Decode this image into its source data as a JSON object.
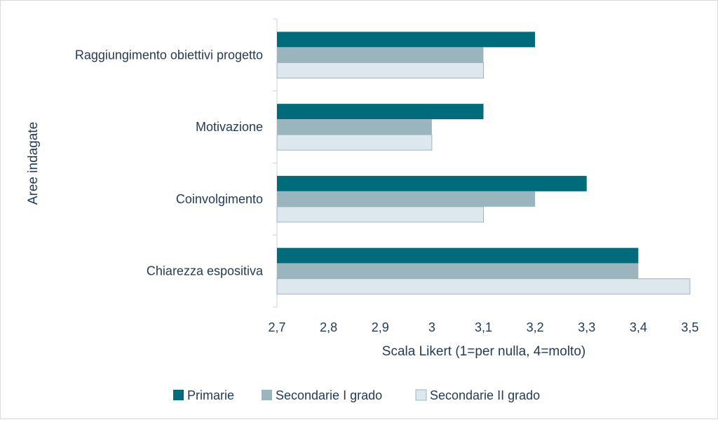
{
  "chart_data": {
    "type": "bar",
    "orientation": "horizontal",
    "title": "",
    "xlabel": "Scala Likert (1=per nulla, 4=molto)",
    "ylabel": "Aree indagate",
    "xlim": [
      2.7,
      3.5
    ],
    "x_ticks": [
      "2,7",
      "2,8",
      "2,9",
      "3",
      "3,1",
      "3,2",
      "3,3",
      "3,4",
      "3,5"
    ],
    "categories": [
      "Raggiungimento obiettivi progetto",
      "Motivazione",
      "Coinvolgimento",
      "Chiarezza espositiva"
    ],
    "series": [
      {
        "name": "Primarie",
        "color": "#006b7a",
        "values": [
          3.2,
          3.1,
          3.3,
          3.4
        ]
      },
      {
        "name": "Secondarie I grado",
        "color": "#9bb5be",
        "values": [
          3.1,
          3.0,
          3.2,
          3.4
        ]
      },
      {
        "name": "Secondarie II grado",
        "color": "#dce8ee",
        "values": [
          3.1,
          3.0,
          3.1,
          3.5
        ]
      }
    ],
    "grid": false,
    "legend": "bottom"
  }
}
